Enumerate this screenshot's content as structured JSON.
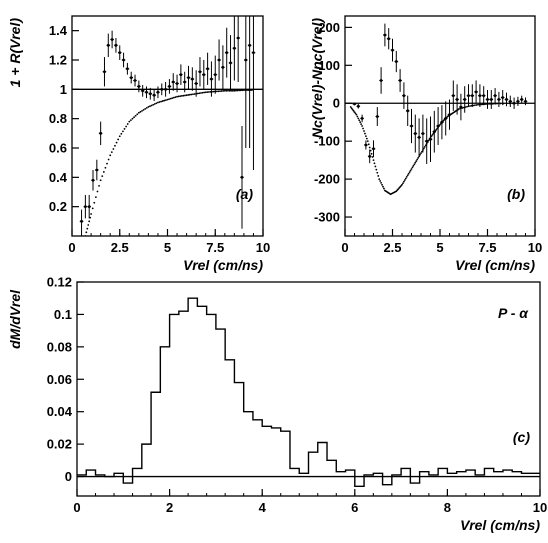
{
  "chart_data": [
    {
      "type": "scatter",
      "panel_label": "(a)",
      "xlabel": "Vrel (cm/ns)",
      "ylabel": "1 + R(Vrel)",
      "xlim": [
        0,
        10
      ],
      "ylim": [
        0,
        1.5
      ],
      "xticks": [
        0,
        2.5,
        5,
        7.5,
        10
      ],
      "xtick_labels": [
        "0",
        "2.5",
        "5",
        "7.5",
        "10"
      ],
      "yticks": [
        0.2,
        0.4,
        0.6,
        0.8,
        1,
        1.2,
        1.4
      ],
      "ytick_labels": [
        "0.2",
        "0.4",
        "0.6",
        "0.8",
        "1",
        "1.2",
        "1.4"
      ],
      "reference_line": 1,
      "series": [
        {
          "style": "points-with-errors",
          "x": [
            0.5,
            0.7,
            0.9,
            1.1,
            1.3,
            1.5,
            1.7,
            1.9,
            2.1,
            2.3,
            2.5,
            2.7,
            2.9,
            3.1,
            3.3,
            3.5,
            3.7,
            3.9,
            4.1,
            4.3,
            4.5,
            4.7,
            4.9,
            5.1,
            5.3,
            5.5,
            5.7,
            5.9,
            6.1,
            6.3,
            6.5,
            6.7,
            6.9,
            7.1,
            7.3,
            7.5,
            7.7,
            7.9,
            8.1,
            8.3,
            8.5,
            8.7,
            8.9,
            9.1,
            9.3,
            9.5
          ],
          "y": [
            0.1,
            0.2,
            0.2,
            0.38,
            0.45,
            0.7,
            1.12,
            1.3,
            1.34,
            1.3,
            1.25,
            1.2,
            1.14,
            1.08,
            1.06,
            1.02,
            0.99,
            0.98,
            0.97,
            0.96,
            0.98,
            1.0,
            1.0,
            1.02,
            1.05,
            1.04,
            1.1,
            1.05,
            1.08,
            1.07,
            1.04,
            1.12,
            1.1,
            1.14,
            1.07,
            1.1,
            1.2,
            1.15,
            1.25,
            1.18,
            1.28,
            1.35,
            0.4,
            1.2,
            1.3,
            1.25
          ],
          "err": [
            0.08,
            0.08,
            0.08,
            0.07,
            0.07,
            0.08,
            0.1,
            0.08,
            0.06,
            0.05,
            0.05,
            0.05,
            0.04,
            0.04,
            0.04,
            0.04,
            0.04,
            0.04,
            0.04,
            0.04,
            0.04,
            0.04,
            0.05,
            0.05,
            0.06,
            0.06,
            0.07,
            0.07,
            0.08,
            0.08,
            0.09,
            0.1,
            0.1,
            0.11,
            0.12,
            0.13,
            0.14,
            0.15,
            0.17,
            0.19,
            0.22,
            0.3,
            0.35,
            0.6,
            0.7,
            0.8
          ]
        },
        {
          "style": "dotted-curve",
          "x": [
            0.7,
            1.0,
            1.5,
            2.0,
            2.5,
            3.0,
            3.5,
            4.0,
            4.5,
            5.0,
            5.5,
            6.0,
            6.5,
            7.0,
            7.5,
            8.0,
            8.5,
            9.0,
            9.5
          ],
          "y": [
            0.0,
            0.15,
            0.38,
            0.55,
            0.68,
            0.78,
            0.84,
            0.88,
            0.91,
            0.93,
            0.95,
            0.96,
            0.97,
            0.98,
            0.985,
            0.99,
            0.99,
            0.995,
            0.995
          ]
        }
      ]
    },
    {
      "type": "scatter",
      "panel_label": "(b)",
      "xlabel": "Vrel (cm/ns)",
      "ylabel": "Nc(Vrel)-Nnc(Vrel)",
      "xlim": [
        0,
        10
      ],
      "ylim": [
        -350,
        230
      ],
      "xticks": [
        0,
        2.5,
        5,
        7.5,
        10
      ],
      "xtick_labels": [
        "0",
        "2.5",
        "5",
        "7.5",
        "10"
      ],
      "yticks": [
        -300,
        -200,
        -100,
        0,
        100,
        200
      ],
      "ytick_labels": [
        "-300",
        "-200",
        "-100",
        "0",
        "100",
        "200"
      ],
      "reference_line": 0,
      "series": [
        {
          "style": "points-with-errors",
          "x": [
            0.5,
            0.7,
            0.9,
            1.1,
            1.3,
            1.5,
            1.7,
            1.9,
            2.1,
            2.3,
            2.5,
            2.7,
            2.9,
            3.1,
            3.3,
            3.5,
            3.7,
            3.9,
            4.1,
            4.3,
            4.5,
            4.7,
            4.9,
            5.1,
            5.3,
            5.5,
            5.7,
            5.9,
            6.1,
            6.3,
            6.5,
            6.7,
            6.9,
            7.1,
            7.3,
            7.5,
            7.7,
            7.9,
            8.1,
            8.3,
            8.5,
            8.7,
            8.9,
            9.1,
            9.3,
            9.5
          ],
          "y": [
            -2,
            -8,
            -40,
            -110,
            -140,
            -120,
            -35,
            60,
            180,
            170,
            140,
            110,
            60,
            20,
            -20,
            -60,
            -80,
            -90,
            -80,
            -100,
            -95,
            -75,
            -60,
            -50,
            -40,
            -30,
            20,
            10,
            -10,
            10,
            20,
            20,
            30,
            20,
            20,
            10,
            10,
            20,
            10,
            15,
            10,
            5,
            0,
            5,
            10,
            5
          ],
          "err": [
            3,
            6,
            10,
            12,
            18,
            22,
            25,
            35,
            30,
            28,
            30,
            28,
            30,
            35,
            40,
            45,
            50,
            50,
            50,
            60,
            60,
            55,
            50,
            45,
            45,
            40,
            40,
            40,
            35,
            35,
            30,
            30,
            30,
            30,
            25,
            25,
            25,
            20,
            20,
            20,
            18,
            15,
            15,
            12,
            10,
            10
          ]
        },
        {
          "style": "dotted-curve",
          "x": [
            0.3,
            0.6,
            0.9,
            1.2,
            1.5,
            1.8,
            2.1,
            2.4,
            2.7,
            3.0,
            3.3,
            3.6,
            3.9,
            4.2,
            4.5,
            4.8,
            5.1,
            5.4,
            5.7,
            6.0,
            6.5,
            7.0,
            7.5,
            8.0,
            9.0
          ],
          "y": [
            -10,
            -30,
            -60,
            -100,
            -150,
            -200,
            -230,
            -240,
            -232,
            -215,
            -190,
            -165,
            -140,
            -115,
            -90,
            -70,
            -50,
            -35,
            -25,
            -15,
            -8,
            -4,
            -2,
            -1,
            0
          ]
        }
      ]
    },
    {
      "type": "histogram",
      "panel_label": "(c)",
      "annotation": "P - α",
      "xlabel": "Vrel (cm/ns)",
      "ylabel": "dM/dVrel",
      "xlim": [
        0,
        10
      ],
      "ylim": [
        -0.012,
        0.12
      ],
      "xticks": [
        0,
        2,
        4,
        6,
        8,
        10
      ],
      "xtick_labels": [
        "0",
        "2",
        "4",
        "6",
        "8",
        "10"
      ],
      "yticks": [
        0,
        0.02,
        0.04,
        0.06,
        0.08,
        0.1,
        0.12
      ],
      "ytick_labels": [
        "0",
        "0.02",
        "0.04",
        "0.06",
        "0.08",
        "0.1",
        "0.12"
      ],
      "reference_line": 0,
      "bin_edges": [
        0,
        0.2,
        0.4,
        0.6,
        0.8,
        1.0,
        1.2,
        1.4,
        1.6,
        1.8,
        2.0,
        2.2,
        2.4,
        2.6,
        2.8,
        3.0,
        3.2,
        3.4,
        3.6,
        3.8,
        4.0,
        4.2,
        4.4,
        4.6,
        4.8,
        5.0,
        5.2,
        5.4,
        5.6,
        5.8,
        6.0,
        6.2,
        6.4,
        6.6,
        6.8,
        7.0,
        7.2,
        7.4,
        7.6,
        7.8,
        8.0,
        8.2,
        8.4,
        8.6,
        8.8,
        9.0,
        9.2,
        9.4,
        9.6,
        9.8,
        10.0
      ],
      "values": [
        0.001,
        0.004,
        0.001,
        0.0,
        0.002,
        -0.004,
        0.005,
        0.02,
        0.052,
        0.08,
        0.1,
        0.102,
        0.11,
        0.105,
        0.1,
        0.091,
        0.072,
        0.058,
        0.04,
        0.035,
        0.031,
        0.03,
        0.028,
        0.005,
        0.002,
        0.015,
        0.021,
        0.01,
        0.003,
        0.004,
        -0.006,
        0.001,
        0.002,
        -0.005,
        0.001,
        0.005,
        -0.004,
        0.003,
        0.001,
        0.005,
        0.002,
        0.003,
        0.004,
        0.001,
        0.005,
        0.003,
        0.004,
        0.003,
        0.002,
        0.002
      ]
    }
  ]
}
